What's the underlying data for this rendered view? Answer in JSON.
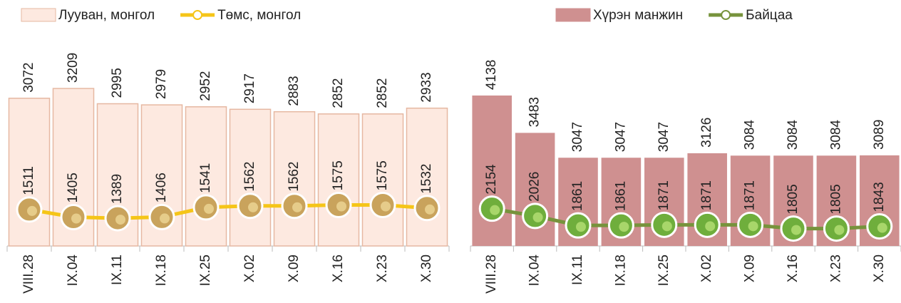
{
  "chart_data": [
    {
      "type": "bar",
      "categories": [
        "VIII.28",
        "IX.04",
        "IX.11",
        "IX.18",
        "IX.25",
        "X.02",
        "X.09",
        "X.16",
        "X.23",
        "X.30"
      ],
      "series": [
        {
          "name": "Лууван, монгол",
          "type": "bar",
          "color": "#fde9e0",
          "values": [
            3072,
            3209,
            2995,
            2979,
            2952,
            2917,
            2883,
            2852,
            2852,
            2933
          ]
        },
        {
          "name": "Төмс, монгол",
          "type": "line",
          "color": "#f5c518",
          "values": [
            1511,
            1405,
            1389,
            1406,
            1541,
            1562,
            1562,
            1575,
            1575,
            1532
          ]
        }
      ],
      "ylim": [
        1000,
        3800
      ]
    },
    {
      "type": "bar",
      "categories": [
        "VIII.28",
        "IX.04",
        "IX.11",
        "IX.18",
        "IX.25",
        "X.02",
        "X.09",
        "X.16",
        "X.23",
        "X.30"
      ],
      "series": [
        {
          "name": "Хүрэн манжин",
          "type": "bar",
          "color": "#cf9090",
          "values": [
            4138,
            3483,
            3047,
            3047,
            3047,
            3126,
            3084,
            3084,
            3084,
            3089
          ]
        },
        {
          "name": "Байцаа",
          "type": "line",
          "color": "#77933c",
          "values": [
            2154,
            2026,
            1861,
            1861,
            1871,
            1871,
            1871,
            1805,
            1805,
            1843
          ]
        }
      ],
      "ylim": [
        1500,
        5000
      ]
    }
  ]
}
